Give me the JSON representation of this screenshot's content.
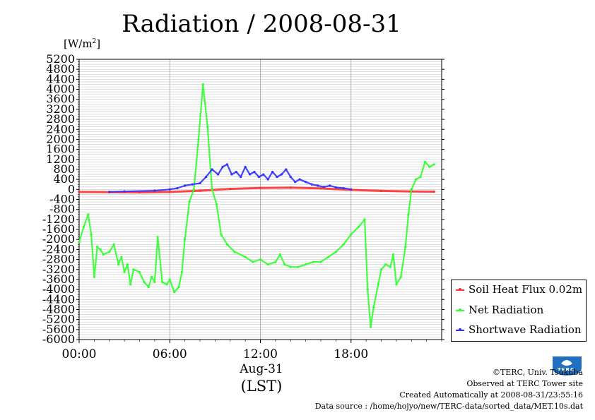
{
  "title": "Radiation / 2008-08-31",
  "unit_label": "[W/m",
  "unit_sup": "2",
  "unit_close": "]",
  "date_label": "Aug-31",
  "lst_label": "(LST)",
  "credits": {
    "copyright": "©TERC, Univ. Tsukuba",
    "observed": "Observed at TERC Tower site",
    "created": "Created Automatically at 2008-08-31/23:55:16",
    "source": "Data source : /home/hojyo/new/TERC-data/sorted_data/MET.10s.dat"
  },
  "logo_text": "TERC",
  "chart_data": {
    "type": "line",
    "xlabel": "Aug-31 (LST)",
    "ylabel": "[W/m2]",
    "xlim": [
      0,
      24
    ],
    "ylim": [
      -6000,
      5200
    ],
    "grid": true,
    "legend_position": "bottom-right",
    "x_ticks": [
      {
        "value": 0,
        "label": "00:00"
      },
      {
        "value": 6,
        "label": "06:00"
      },
      {
        "value": 12,
        "label": "12:00"
      },
      {
        "value": 18,
        "label": "18:00"
      }
    ],
    "y_ticks": [
      5200,
      4800,
      4400,
      4000,
      3600,
      3200,
      2800,
      2400,
      2000,
      1600,
      1200,
      800,
      400,
      0,
      -400,
      -800,
      -1200,
      -1600,
      -2000,
      -2400,
      -2800,
      -3200,
      -3600,
      -4000,
      -4400,
      -4800,
      -5200,
      -5600,
      -6000
    ],
    "y_tick_labels": [
      "5200",
      "4800",
      "4400",
      "4000",
      "3600",
      "3200",
      "2800",
      "2400",
      "2000",
      "1600",
      "1200",
      "800",
      "400",
      "0",
      "-400",
      "-800",
      "-1200",
      "-1600",
      "-2000",
      "-2400",
      "-2800",
      "-3200",
      "-3600",
      "-4000",
      "-4400",
      "-4800",
      "-5200",
      "-5600",
      "-6000"
    ],
    "series": [
      {
        "name": "Soil Heat Flux 0.02m",
        "color": "#ff3030",
        "x": [
          0,
          2,
          4,
          6,
          8,
          10,
          12,
          14,
          16,
          18,
          20,
          22,
          23.5
        ],
        "y": [
          -100,
          -110,
          -120,
          -100,
          -50,
          20,
          60,
          70,
          40,
          -20,
          -60,
          -80,
          -90
        ]
      },
      {
        "name": "Net Radiation",
        "color": "#30ff30",
        "x": [
          0,
          0.3,
          0.6,
          0.8,
          1.0,
          1.2,
          1.4,
          1.6,
          2.0,
          2.3,
          2.6,
          2.8,
          3.0,
          3.2,
          3.4,
          3.6,
          4.0,
          4.3,
          4.6,
          4.8,
          5.0,
          5.2,
          5.5,
          5.8,
          6.0,
          6.3,
          6.6,
          6.8,
          7.0,
          7.3,
          7.6,
          7.9,
          8.2,
          8.5,
          8.8,
          9.1,
          9.4,
          9.8,
          10.3,
          11,
          11.5,
          12,
          12.5,
          13,
          13.3,
          13.6,
          14,
          14.5,
          15,
          15.5,
          16,
          16.5,
          17,
          17.5,
          18,
          18.5,
          18.9,
          19.1,
          19.3,
          19.5,
          19.8,
          20.0,
          20.3,
          20.6,
          20.8,
          21.0,
          21.3,
          21.6,
          21.8,
          22.0,
          22.3,
          22.6,
          22.9,
          23.2,
          23.5
        ],
        "y": [
          -2100,
          -1500,
          -1000,
          -1800,
          -3500,
          -2300,
          -2400,
          -2600,
          -2500,
          -2200,
          -3000,
          -2700,
          -3300,
          -3000,
          -3800,
          -3200,
          -3300,
          -3700,
          -3900,
          -3500,
          -3700,
          -1900,
          -3700,
          -3800,
          -3600,
          -4100,
          -3900,
          -3300,
          -2000,
          -500,
          0,
          2000,
          4200,
          2500,
          0,
          -600,
          -1800,
          -2200,
          -2500,
          -2700,
          -2900,
          -2800,
          -3000,
          -2900,
          -2600,
          -3000,
          -3100,
          -3100,
          -3000,
          -2900,
          -2900,
          -2700,
          -2500,
          -2200,
          -1800,
          -1500,
          -1200,
          -4000,
          -5500,
          -4700,
          -3800,
          -3200,
          -3000,
          -3100,
          -2600,
          -3800,
          -3500,
          -2300,
          -1000,
          0,
          400,
          500,
          1100,
          900,
          1000
        ]
      },
      {
        "name": "Shortwave Radiation",
        "color": "#3030ff",
        "x": [
          2.0,
          3.0,
          5.0,
          6.0,
          6.5,
          7.0,
          7.5,
          8.0,
          8.4,
          8.8,
          9.2,
          9.5,
          9.8,
          10.1,
          10.4,
          10.7,
          11,
          11.3,
          11.6,
          11.9,
          12.2,
          12.5,
          12.8,
          13.1,
          13.4,
          13.7,
          14,
          14.3,
          14.6,
          15,
          15.4,
          15.8,
          16.2,
          16.6,
          17.0,
          17.5,
          18.0
        ],
        "y": [
          -100,
          -80,
          -50,
          0,
          50,
          150,
          200,
          250,
          500,
          800,
          600,
          900,
          1000,
          600,
          700,
          500,
          900,
          600,
          700,
          500,
          600,
          400,
          700,
          500,
          600,
          800,
          500,
          300,
          400,
          300,
          200,
          150,
          100,
          150,
          80,
          50,
          0
        ]
      }
    ]
  }
}
